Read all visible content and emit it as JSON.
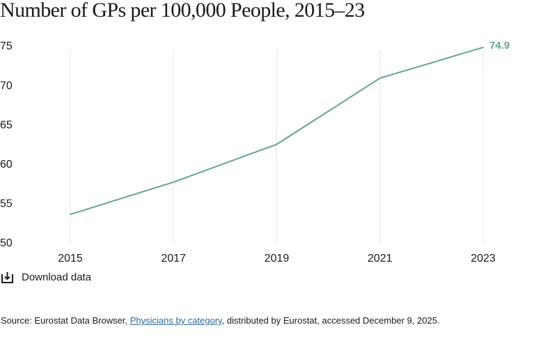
{
  "title": "Number of GPs per 100,000 People, 2015–23",
  "colors": {
    "line": "#64a48c",
    "grid": "#e6e6e6",
    "text": "#1a1a1a",
    "link": "#2f6c9a"
  },
  "chart_data": {
    "type": "line",
    "title": "Number of GPs per 100,000 People, 2015–23",
    "x": [
      2015,
      2017,
      2019,
      2021,
      2023
    ],
    "x_ticks": [
      "2015",
      "2017",
      "2019",
      "2021",
      "2023"
    ],
    "series": [
      {
        "values": [
          53.7,
          57.8,
          62.6,
          71.0,
          74.9
        ]
      }
    ],
    "ylim": [
      50,
      75
    ],
    "y_ticks": [
      "50",
      "55",
      "60",
      "65",
      "70",
      "75"
    ],
    "end_label": "74.9",
    "grid": "vertical lines at x ticks",
    "legend": "none"
  },
  "download": {
    "icon": "download-icon",
    "label": "Download data"
  },
  "source": {
    "prefix": "Source: Eurostat Data Browser, ",
    "link": "Physicians by category",
    "suffix": ", distributed by Eurostat, accessed December 9, 2025."
  }
}
